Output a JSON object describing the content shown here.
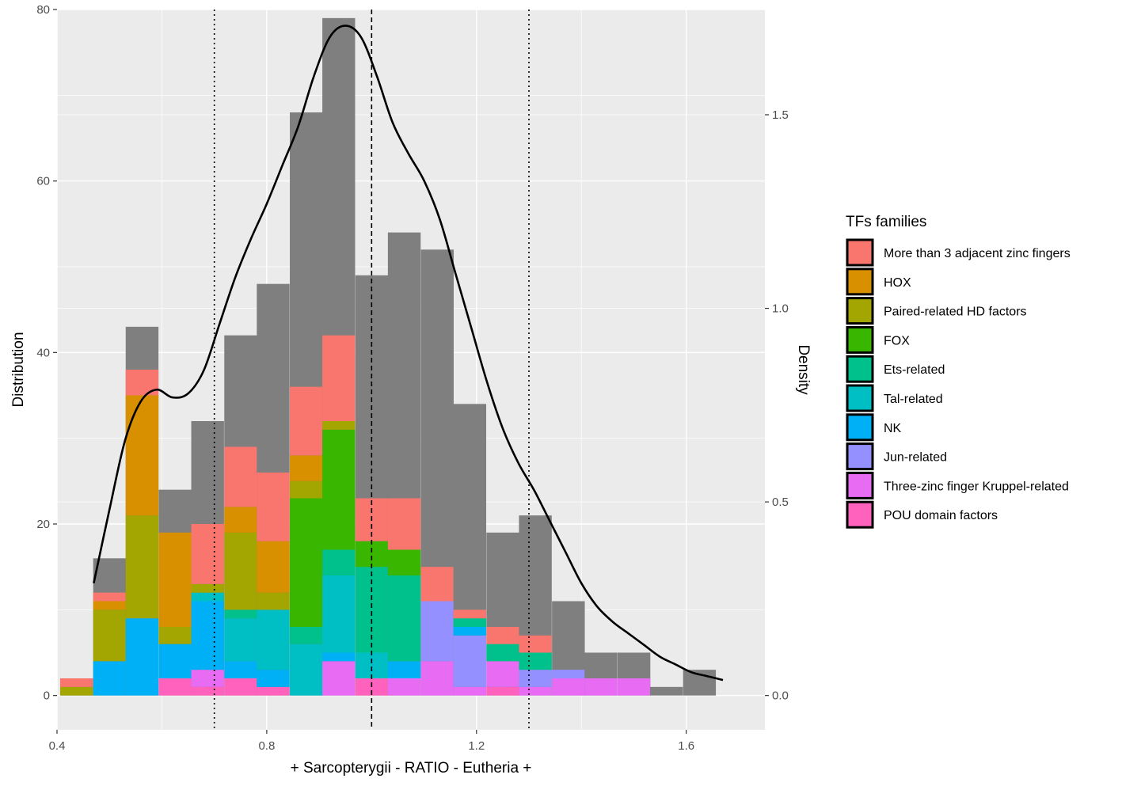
{
  "chart_data": {
    "type": "bar",
    "subtype": "stacked histogram with density overlay",
    "xlabel": "+ Sarcopterygii - RATIO - Eutheria +",
    "ylabel": "Distribution",
    "y2label": "Density",
    "xlim": [
      0.4,
      1.75
    ],
    "ylim": [
      -4,
      80
    ],
    "y2lim": [
      0,
      1.75
    ],
    "x_ticks": [
      0.4,
      0.8,
      1.2,
      1.6
    ],
    "x_tick_labels": [
      "0.4",
      "0.8",
      "1.2",
      "1.6"
    ],
    "y_ticks": [
      0,
      20,
      40,
      60,
      80
    ],
    "y_tick_labels": [
      "0",
      "20",
      "40",
      "60",
      "80"
    ],
    "y2_ticks": [
      0.0,
      0.5,
      1.0,
      1.5
    ],
    "y2_tick_labels": [
      "0.0",
      "0.5",
      "1.0",
      "1.5"
    ],
    "grid": true,
    "background_color": "#ebebeb",
    "legend_position": "right",
    "legend_title": "TFs families",
    "bin_width": 0.0625,
    "bin_left_edges": [
      0.406,
      0.469,
      0.531,
      0.594,
      0.656,
      0.719,
      0.781,
      0.844,
      0.906,
      0.969,
      1.031,
      1.094,
      1.156,
      1.219,
      1.281,
      1.344,
      1.406,
      1.469,
      1.531,
      1.594
    ],
    "total_counts": [
      2,
      16,
      43,
      24,
      32,
      42,
      48,
      68,
      79,
      49,
      54,
      52,
      34,
      19,
      21,
      11,
      5,
      5,
      1,
      3
    ],
    "other_color": "#7f7f7f",
    "series": [
      {
        "name": "POU domain factors",
        "color": "#ff62bc",
        "values": [
          0,
          0,
          0,
          2,
          1,
          2,
          1,
          0,
          0,
          2,
          0,
          0,
          0,
          1,
          0,
          0,
          0,
          0,
          0,
          0
        ]
      },
      {
        "name": "Three-zinc finger Kruppel-related",
        "color": "#e76bf3",
        "values": [
          0,
          0,
          0,
          0,
          2,
          0,
          0,
          0,
          4,
          0,
          2,
          4,
          1,
          3,
          1,
          2,
          2,
          2,
          0,
          0
        ]
      },
      {
        "name": "Jun-related",
        "color": "#9590ff",
        "values": [
          0,
          0,
          0,
          0,
          0,
          0,
          0,
          0,
          0,
          0,
          0,
          7,
          6,
          0,
          2,
          1,
          0,
          0,
          0,
          0
        ]
      },
      {
        "name": "NK",
        "color": "#00b0f6",
        "values": [
          0,
          4,
          9,
          4,
          8,
          2,
          2,
          0,
          1,
          0,
          2,
          0,
          1,
          0,
          0,
          0,
          0,
          0,
          0,
          0
        ]
      },
      {
        "name": "Tal-related",
        "color": "#00bfc4",
        "values": [
          0,
          0,
          0,
          0,
          1,
          5,
          7,
          6,
          9,
          3,
          0,
          0,
          0,
          0,
          0,
          0,
          0,
          0,
          0,
          0
        ]
      },
      {
        "name": "Ets-related",
        "color": "#00c08b",
        "values": [
          0,
          0,
          0,
          0,
          0,
          1,
          0,
          2,
          3,
          10,
          10,
          0,
          1,
          2,
          2,
          0,
          0,
          0,
          0,
          0
        ]
      },
      {
        "name": "FOX",
        "color": "#39b600",
        "values": [
          0,
          0,
          0,
          0,
          0,
          0,
          0,
          15,
          14,
          3,
          3,
          0,
          0,
          0,
          0,
          0,
          0,
          0,
          0,
          0
        ]
      },
      {
        "name": "Paired-related HD factors",
        "color": "#a3a500",
        "values": [
          1,
          6,
          12,
          2,
          1,
          9,
          2,
          2,
          1,
          0,
          0,
          0,
          0,
          0,
          0,
          0,
          0,
          0,
          0,
          0
        ]
      },
      {
        "name": "HOX",
        "color": "#d89000",
        "values": [
          0,
          1,
          14,
          11,
          0,
          3,
          6,
          3,
          0,
          0,
          0,
          0,
          0,
          0,
          0,
          0,
          0,
          0,
          0,
          0
        ]
      },
      {
        "name": "More than 3 adjacent zinc fingers",
        "color": "#f8766d",
        "values": [
          1,
          1,
          3,
          0,
          7,
          7,
          8,
          8,
          10,
          5,
          6,
          4,
          1,
          2,
          2,
          0,
          0,
          0,
          0,
          0
        ]
      }
    ],
    "legend": [
      {
        "label": "More than 3 adjacent zinc fingers",
        "color": "#f8766d"
      },
      {
        "label": "HOX",
        "color": "#d89000"
      },
      {
        "label": "Paired-related HD factors",
        "color": "#a3a500"
      },
      {
        "label": "FOX",
        "color": "#39b600"
      },
      {
        "label": "Ets-related",
        "color": "#00c08b"
      },
      {
        "label": "Tal-related",
        "color": "#00bfc4"
      },
      {
        "label": "NK",
        "color": "#00b0f6"
      },
      {
        "label": "Jun-related",
        "color": "#9590ff"
      },
      {
        "label": "Three-zinc finger Kruppel-related",
        "color": "#e76bf3"
      },
      {
        "label": "POU domain factors",
        "color": "#ff62bc"
      }
    ],
    "density": {
      "x": [
        0.47,
        0.5,
        0.53,
        0.56,
        0.59,
        0.62,
        0.65,
        0.68,
        0.71,
        0.74,
        0.77,
        0.8,
        0.83,
        0.86,
        0.89,
        0.92,
        0.95,
        0.98,
        1.01,
        1.04,
        1.07,
        1.1,
        1.13,
        1.16,
        1.19,
        1.22,
        1.25,
        1.28,
        1.31,
        1.34,
        1.37,
        1.4,
        1.43,
        1.46,
        1.49,
        1.52,
        1.55,
        1.58,
        1.61,
        1.64,
        1.67
      ],
      "y": [
        0.29,
        0.48,
        0.66,
        0.76,
        0.79,
        0.77,
        0.78,
        0.84,
        0.96,
        1.08,
        1.18,
        1.27,
        1.37,
        1.47,
        1.6,
        1.7,
        1.73,
        1.7,
        1.6,
        1.48,
        1.4,
        1.33,
        1.23,
        1.09,
        0.95,
        0.81,
        0.69,
        0.6,
        0.53,
        0.45,
        0.37,
        0.29,
        0.23,
        0.19,
        0.16,
        0.13,
        0.1,
        0.08,
        0.06,
        0.05,
        0.04
      ],
      "color": "#000000"
    },
    "vlines": [
      {
        "x": 0.7,
        "style": "dotted"
      },
      {
        "x": 1.0,
        "style": "dashed"
      },
      {
        "x": 1.3,
        "style": "dotted"
      }
    ]
  }
}
